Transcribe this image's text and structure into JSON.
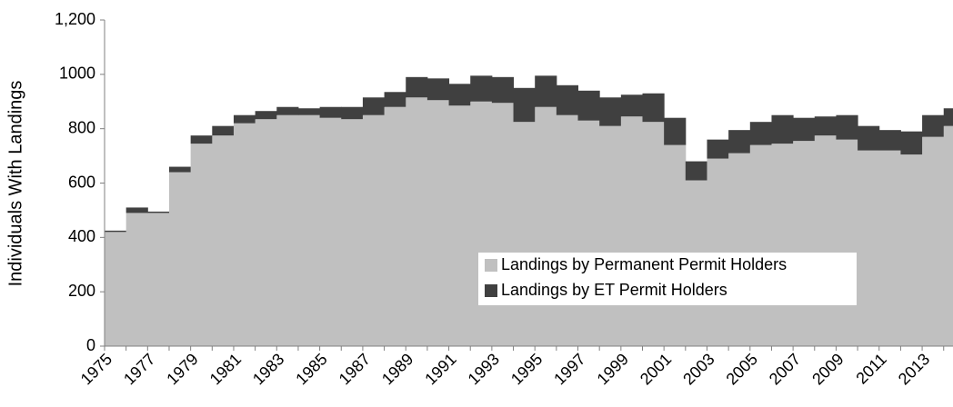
{
  "chart_data": {
    "type": "stacked-step-area",
    "y_label": "Individuals With Landings",
    "categories": [
      "1975",
      null,
      "1977",
      null,
      "1979",
      null,
      "1981",
      null,
      "1983",
      null,
      "1985",
      null,
      "1987",
      null,
      "1989",
      null,
      "1991",
      null,
      "1993",
      null,
      "1995",
      null,
      "1997",
      null,
      "1999",
      null,
      "2001",
      null,
      "2003",
      null,
      "2005",
      null,
      "2007",
      null,
      "2009",
      null,
      "2011",
      null,
      "2013",
      null
    ],
    "series": [
      {
        "name": "Landings by Permanent Permit Holders",
        "color": "#c0c0c0",
        "values": [
          420,
          490,
          490,
          640,
          745,
          775,
          820,
          835,
          850,
          850,
          840,
          835,
          850,
          880,
          915,
          905,
          885,
          900,
          895,
          825,
          880,
          850,
          830,
          810,
          845,
          825,
          740,
          610,
          690,
          710,
          740,
          745,
          755,
          775,
          760,
          720,
          720,
          705,
          770,
          810
        ]
      },
      {
        "name": "Landings by ET Permit Holders",
        "color": "#404040",
        "values": [
          5,
          20,
          5,
          20,
          30,
          35,
          30,
          30,
          30,
          25,
          40,
          45,
          65,
          55,
          75,
          80,
          80,
          95,
          95,
          125,
          115,
          110,
          110,
          105,
          80,
          105,
          100,
          70,
          70,
          85,
          85,
          105,
          85,
          70,
          90,
          90,
          75,
          85,
          80,
          65
        ]
      }
    ],
    "ylim": [
      0,
      1200
    ],
    "yticks": [
      0,
      200,
      400,
      600,
      800,
      1000,
      {
        "value": 1200,
        "label": "1,200"
      }
    ],
    "grid": false
  }
}
